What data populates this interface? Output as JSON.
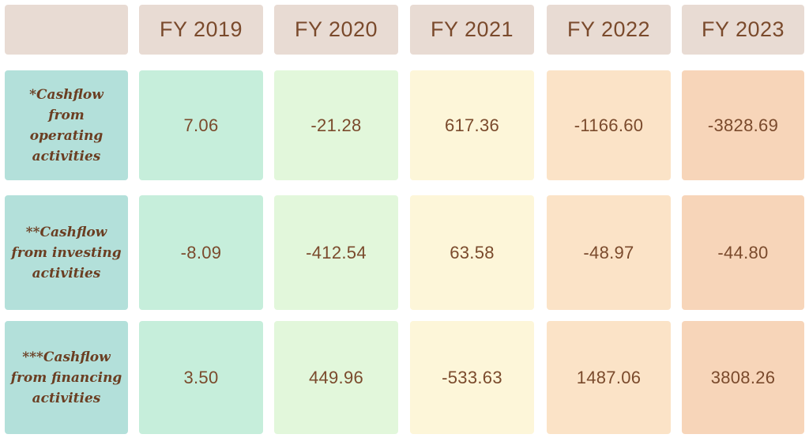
{
  "chart_data": {
    "type": "table",
    "corner": "",
    "columns": [
      "FY 2019",
      "FY 2020",
      "FY 2021",
      "FY 2022",
      "FY 2023"
    ],
    "column_colors": [
      "#c6eedb",
      "#e2f7db",
      "#fdf6d9",
      "#fbe3c7",
      "#f7d5b9"
    ],
    "rows": [
      {
        "label": "*Cashflow from operating activities",
        "values": [
          "7.06",
          "-21.28",
          "617.36",
          "-1166.60",
          "-3828.69"
        ]
      },
      {
        "label": "**Cashflow from investing activities",
        "values": [
          "-8.09",
          "-412.54",
          "63.58",
          "-48.97",
          "-44.80"
        ]
      },
      {
        "label": "***Cashflow from financing activities",
        "values": [
          "3.50",
          "449.96",
          "-533.63",
          "1487.06",
          "3808.26"
        ]
      }
    ]
  },
  "colors": {
    "header_bg": "#e8dbd3",
    "label_bg": "#b3e0da",
    "text": "#7a4a2c"
  }
}
